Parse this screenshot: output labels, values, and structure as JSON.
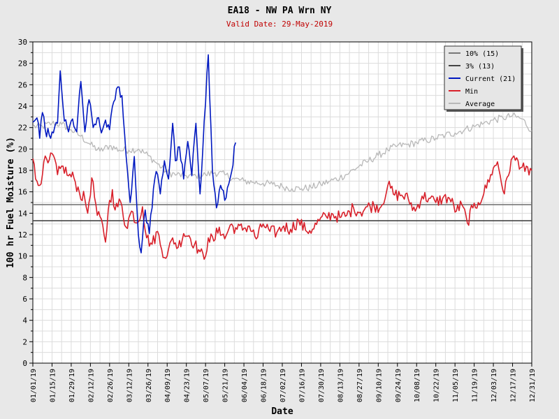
{
  "chart_data": {
    "type": "line",
    "title": "EA18 - NW PA Wrn NY",
    "subtitle": "Valid Date: 29-May-2019",
    "xlabel": "Date",
    "ylabel": "100 hr Fuel Moisture (%)",
    "ylim": [
      0,
      30
    ],
    "xlim": [
      "2019-01-01",
      "2019-12-31"
    ],
    "yticks": [
      0,
      2,
      4,
      6,
      8,
      10,
      12,
      14,
      16,
      18,
      20,
      22,
      24,
      26,
      28,
      30
    ],
    "xticks": [
      "01/01/19",
      "01/15/19",
      "01/29/19",
      "02/12/19",
      "02/26/19",
      "03/12/19",
      "03/26/19",
      "04/09/19",
      "04/23/19",
      "05/07/19",
      "05/21/19",
      "06/04/19",
      "06/18/19",
      "07/02/19",
      "07/16/19",
      "07/30/19",
      "08/13/19",
      "08/27/19",
      "09/10/19",
      "09/24/19",
      "10/08/19",
      "10/22/19",
      "11/05/19",
      "11/19/19",
      "12/03/19",
      "12/17/19",
      "12/31/19"
    ],
    "grid": true,
    "legend_position": "top-right",
    "series": [
      {
        "name": "10% (15)",
        "key": "p10",
        "color": "#777777",
        "constant": 14.8
      },
      {
        "name": "3% (13)",
        "key": "p3",
        "color": "#444444",
        "constant": 13.3
      },
      {
        "name": "Current (21)",
        "key": "current",
        "color": "#0018c0",
        "points": [
          [
            "01/01/19",
            22.5
          ],
          [
            "01/04/19",
            22.9
          ],
          [
            "01/06/19",
            21.0
          ],
          [
            "01/08/19",
            23.4
          ],
          [
            "01/10/19",
            21.8
          ],
          [
            "01/13/19",
            21.3
          ],
          [
            "01/16/19",
            21.5
          ],
          [
            "01/19/19",
            22.4
          ],
          [
            "01/21/19",
            27.3
          ],
          [
            "01/24/19",
            22.6
          ],
          [
            "01/27/19",
            21.6
          ],
          [
            "01/30/19",
            22.8
          ],
          [
            "02/02/19",
            21.6
          ],
          [
            "02/05/19",
            26.3
          ],
          [
            "02/08/19",
            21.6
          ],
          [
            "02/11/19",
            24.6
          ],
          [
            "02/14/19",
            22.0
          ],
          [
            "02/17/19",
            22.9
          ],
          [
            "02/20/19",
            21.5
          ],
          [
            "02/23/19",
            22.7
          ],
          [
            "02/26/19",
            21.8
          ],
          [
            "03/01/19",
            24.4
          ],
          [
            "03/04/19",
            25.8
          ],
          [
            "03/07/19",
            25.0
          ],
          [
            "03/10/19",
            19.4
          ],
          [
            "03/13/19",
            15.0
          ],
          [
            "03/16/19",
            19.3
          ],
          [
            "03/19/19",
            12.0
          ],
          [
            "03/21/19",
            10.3
          ],
          [
            "03/24/19",
            14.3
          ],
          [
            "03/27/19",
            12.1
          ],
          [
            "03/30/19",
            16.3
          ],
          [
            "04/01/19",
            17.9
          ],
          [
            "04/04/19",
            15.8
          ],
          [
            "04/07/19",
            18.9
          ],
          [
            "04/10/19",
            17.2
          ],
          [
            "04/13/19",
            22.4
          ],
          [
            "04/15/19",
            18.9
          ],
          [
            "04/18/19",
            20.2
          ],
          [
            "04/21/19",
            17.2
          ],
          [
            "04/24/19",
            20.7
          ],
          [
            "04/27/19",
            17.5
          ],
          [
            "04/30/19",
            22.4
          ],
          [
            "05/03/19",
            15.8
          ],
          [
            "05/06/19",
            22.6
          ],
          [
            "05/09/19",
            28.8
          ],
          [
            "05/12/19",
            18.0
          ],
          [
            "05/15/19",
            14.5
          ],
          [
            "05/18/19",
            16.6
          ],
          [
            "05/21/19",
            15.2
          ],
          [
            "05/25/19",
            17.3
          ],
          [
            "05/29/19",
            20.6
          ]
        ]
      },
      {
        "name": "Min",
        "key": "min",
        "color": "#d8202a",
        "points": [
          [
            "01/01/19",
            19.1
          ],
          [
            "01/03/19",
            17.2
          ],
          [
            "01/06/19",
            16.6
          ],
          [
            "01/09/19",
            18.8
          ],
          [
            "01/12/19",
            18.7
          ],
          [
            "01/16/19",
            19.4
          ],
          [
            "01/19/19",
            17.6
          ],
          [
            "01/23/19",
            18.4
          ],
          [
            "01/27/19",
            17.5
          ],
          [
            "01/31/19",
            17.3
          ],
          [
            "02/04/19",
            15.9
          ],
          [
            "02/08/19",
            15.3
          ],
          [
            "02/10/19",
            14.0
          ],
          [
            "02/13/19",
            17.3
          ],
          [
            "02/17/19",
            13.8
          ],
          [
            "02/21/19",
            12.9
          ],
          [
            "02/23/19",
            11.3
          ],
          [
            "02/25/19",
            14.3
          ],
          [
            "02/28/19",
            16.2
          ],
          [
            "03/02/19",
            14.3
          ],
          [
            "03/06/19",
            15.1
          ],
          [
            "03/10/19",
            12.7
          ],
          [
            "03/14/19",
            14.2
          ],
          [
            "03/18/19",
            13.1
          ],
          [
            "03/22/19",
            14.6
          ],
          [
            "03/25/19",
            11.7
          ],
          [
            "03/29/19",
            11.1
          ],
          [
            "04/02/19",
            12.3
          ],
          [
            "04/05/19",
            10.6
          ],
          [
            "04/09/19",
            10.0
          ],
          [
            "04/13/19",
            11.7
          ],
          [
            "04/17/19",
            10.8
          ],
          [
            "04/21/19",
            12.1
          ],
          [
            "04/25/19",
            11.9
          ],
          [
            "04/29/19",
            11.1
          ],
          [
            "05/02/19",
            10.6
          ],
          [
            "05/06/19",
            9.7
          ],
          [
            "05/09/19",
            11.7
          ],
          [
            "05/13/19",
            11.4
          ],
          [
            "05/17/19",
            12.7
          ],
          [
            "05/21/19",
            11.6
          ],
          [
            "05/25/19",
            12.9
          ],
          [
            "05/30/19",
            12.5
          ],
          [
            "06/04/19",
            12.6
          ],
          [
            "06/08/19",
            12.8
          ],
          [
            "06/13/19",
            11.6
          ],
          [
            "06/18/19",
            13.0
          ],
          [
            "06/23/19",
            12.3
          ],
          [
            "06/28/19",
            12.2
          ],
          [
            "07/03/19",
            12.8
          ],
          [
            "07/08/19",
            12.5
          ],
          [
            "07/14/19",
            13.3
          ],
          [
            "07/19/19",
            12.4
          ],
          [
            "07/24/19",
            12.5
          ],
          [
            "07/29/19",
            13.3
          ],
          [
            "08/03/19",
            13.7
          ],
          [
            "08/08/19",
            13.9
          ],
          [
            "08/13/19",
            13.6
          ],
          [
            "08/18/19",
            13.8
          ],
          [
            "08/23/19",
            14.5
          ],
          [
            "08/28/19",
            14.1
          ],
          [
            "09/02/19",
            14.6
          ],
          [
            "09/07/19",
            14.7
          ],
          [
            "09/12/19",
            14.6
          ],
          [
            "09/17/19",
            16.6
          ],
          [
            "09/22/19",
            15.7
          ],
          [
            "09/27/19",
            15.7
          ],
          [
            "10/02/19",
            15.3
          ],
          [
            "10/07/19",
            14.2
          ],
          [
            "10/12/19",
            15.6
          ],
          [
            "10/17/19",
            15.4
          ],
          [
            "10/22/19",
            15.0
          ],
          [
            "10/27/19",
            15.4
          ],
          [
            "11/01/19",
            15.4
          ],
          [
            "11/06/19",
            14.2
          ],
          [
            "11/10/19",
            14.8
          ],
          [
            "11/14/19",
            13.1
          ],
          [
            "11/18/19",
            14.5
          ],
          [
            "11/22/19",
            15.0
          ],
          [
            "11/26/19",
            15.8
          ],
          [
            "12/01/19",
            17.6
          ],
          [
            "12/06/19",
            18.8
          ],
          [
            "12/11/19",
            15.8
          ],
          [
            "12/16/19",
            19.0
          ],
          [
            "12/21/19",
            18.9
          ],
          [
            "12/26/19",
            17.9
          ],
          [
            "12/31/19",
            18.0
          ]
        ]
      },
      {
        "name": "Average",
        "key": "avg",
        "color": "#b8b8b8",
        "points": [
          [
            "01/01/19",
            22.1
          ],
          [
            "01/08/19",
            22.1
          ],
          [
            "01/15/19",
            22.4
          ],
          [
            "01/22/19",
            22.3
          ],
          [
            "01/29/19",
            21.8
          ],
          [
            "02/05/19",
            21.2
          ],
          [
            "02/12/19",
            20.4
          ],
          [
            "02/19/19",
            19.8
          ],
          [
            "02/26/19",
            20.3
          ],
          [
            "03/05/19",
            19.9
          ],
          [
            "03/12/19",
            19.9
          ],
          [
            "03/19/19",
            20.0
          ],
          [
            "03/26/19",
            19.4
          ],
          [
            "04/02/19",
            18.6
          ],
          [
            "04/09/19",
            17.8
          ],
          [
            "04/16/19",
            17.6
          ],
          [
            "04/23/19",
            17.5
          ],
          [
            "04/30/19",
            17.5
          ],
          [
            "05/07/19",
            17.6
          ],
          [
            "05/14/19",
            17.8
          ],
          [
            "05/21/19",
            17.6
          ],
          [
            "05/28/19",
            17.2
          ],
          [
            "06/04/19",
            17.0
          ],
          [
            "06/11/19",
            16.9
          ],
          [
            "06/18/19",
            16.8
          ],
          [
            "06/25/19",
            16.7
          ],
          [
            "07/02/19",
            16.5
          ],
          [
            "07/09/19",
            16.3
          ],
          [
            "07/16/19",
            16.3
          ],
          [
            "07/23/19",
            16.4
          ],
          [
            "07/30/19",
            16.7
          ],
          [
            "08/06/19",
            17.0
          ],
          [
            "08/13/19",
            17.3
          ],
          [
            "08/20/19",
            17.8
          ],
          [
            "08/27/19",
            18.4
          ],
          [
            "09/03/19",
            18.9
          ],
          [
            "09/10/19",
            19.4
          ],
          [
            "09/17/19",
            19.9
          ],
          [
            "09/24/19",
            20.3
          ],
          [
            "10/01/19",
            20.4
          ],
          [
            "10/08/19",
            20.6
          ],
          [
            "10/15/19",
            20.8
          ],
          [
            "10/22/19",
            21.0
          ],
          [
            "10/29/19",
            21.3
          ],
          [
            "11/05/19",
            21.5
          ],
          [
            "11/12/19",
            21.8
          ],
          [
            "11/19/19",
            22.1
          ],
          [
            "11/26/19",
            22.4
          ],
          [
            "12/03/19",
            22.7
          ],
          [
            "12/10/19",
            22.9
          ],
          [
            "12/17/19",
            23.1
          ],
          [
            "12/24/19",
            22.8
          ],
          [
            "12/31/19",
            21.7
          ]
        ]
      }
    ]
  }
}
